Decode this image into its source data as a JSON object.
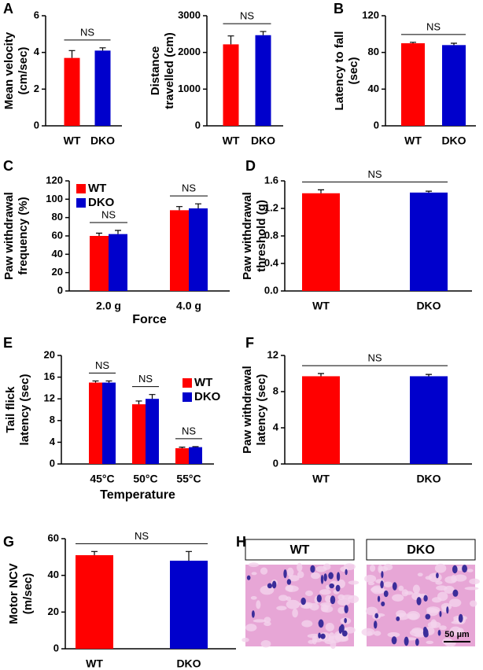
{
  "chart_data": [
    {
      "type": "bar",
      "panel": "A",
      "ylabel": [
        "Mean velocity",
        "(cm/sec)"
      ],
      "categories": [
        "WT",
        "DKO"
      ],
      "values": [
        3.7,
        4.1
      ],
      "errors": [
        0.4,
        0.15
      ],
      "colors": [
        "#ff0000",
        "#0000cc"
      ],
      "ylim": [
        0,
        6
      ],
      "yticks": [
        0,
        2,
        4,
        6
      ],
      "annotations": [
        "NS"
      ]
    },
    {
      "type": "bar",
      "ylabel": [
        "Distance",
        "travelled (cm)"
      ],
      "categories": [
        "WT",
        "DKO"
      ],
      "values": [
        2220,
        2470
      ],
      "errors": [
        230,
        100
      ],
      "colors": [
        "#ff0000",
        "#0000cc"
      ],
      "ylim": [
        0,
        3000
      ],
      "yticks": [
        0,
        1000,
        2000,
        3000
      ],
      "annotations": [
        "NS"
      ]
    },
    {
      "type": "bar",
      "panel": "B",
      "ylabel": [
        "Latency to fall",
        "(sec)"
      ],
      "categories": [
        "WT",
        "DKO"
      ],
      "values": [
        90,
        88
      ],
      "errors": [
        1,
        2
      ],
      "colors": [
        "#ff0000",
        "#0000cc"
      ],
      "ylim": [
        0,
        120
      ],
      "yticks": [
        0,
        40,
        80,
        120
      ],
      "annotations": [
        "NS"
      ]
    },
    {
      "type": "bar",
      "panel": "C",
      "ylabel": [
        "Paw withdrawal",
        "frequency (%)"
      ],
      "xlabel": "Force",
      "categories": [
        "2.0 g",
        "4.0 g"
      ],
      "series": [
        {
          "name": "WT",
          "color": "#ff0000",
          "values": [
            60,
            88
          ],
          "errors": [
            3,
            4
          ]
        },
        {
          "name": "DKO",
          "color": "#0000cc",
          "values": [
            62,
            90
          ],
          "errors": [
            4,
            5
          ]
        }
      ],
      "ylim": [
        0,
        120
      ],
      "yticks": [
        0,
        20,
        40,
        60,
        80,
        100,
        120
      ],
      "annotations": [
        "NS",
        "NS"
      ],
      "legend": "upper left"
    },
    {
      "type": "bar",
      "panel": "D",
      "ylabel": [
        "Paw withdrawal",
        "threshold (g)"
      ],
      "categories": [
        "WT",
        "DKO"
      ],
      "values": [
        1.42,
        1.43
      ],
      "errors": [
        0.05,
        0.02
      ],
      "colors": [
        "#ff0000",
        "#0000cc"
      ],
      "ylim": [
        0,
        1.6
      ],
      "yticks": [
        {
          "value": 0,
          "label": "0.0"
        },
        0.4,
        0.8,
        1.2,
        1.6
      ],
      "annotations": [
        "NS"
      ]
    },
    {
      "type": "bar",
      "panel": "E",
      "ylabel": [
        "Tail flick",
        "latency (sec)"
      ],
      "xlabel": "Temperature",
      "categories": [
        "45°C",
        "50°C",
        "55°C"
      ],
      "series": [
        {
          "name": "WT",
          "color": "#ff0000",
          "values": [
            15,
            11,
            2.9
          ],
          "errors": [
            0.3,
            0.6,
            0.2
          ]
        },
        {
          "name": "DKO",
          "color": "#0000cc",
          "values": [
            15,
            12,
            3.1
          ],
          "errors": [
            0.3,
            0.8,
            0.1
          ]
        }
      ],
      "ylim": [
        0,
        20
      ],
      "yticks": [
        0,
        4,
        8,
        12,
        16,
        20
      ],
      "annotations": [
        "NS",
        "NS",
        "NS"
      ],
      "legend": "upper right"
    },
    {
      "type": "bar",
      "panel": "F",
      "ylabel": [
        "Paw withdrawal",
        "latency (sec)"
      ],
      "categories": [
        "WT",
        "DKO"
      ],
      "values": [
        9.7,
        9.7
      ],
      "errors": [
        0.3,
        0.2
      ],
      "colors": [
        "#ff0000",
        "#0000cc"
      ],
      "ylim": [
        0,
        12
      ],
      "yticks": [
        0,
        4,
        8,
        12
      ],
      "annotations": [
        "NS"
      ]
    },
    {
      "type": "bar",
      "panel": "G",
      "ylabel": [
        "Motor NCV",
        "(m/sec)"
      ],
      "categories": [
        "WT",
        "DKO"
      ],
      "values": [
        51,
        48
      ],
      "errors": [
        2,
        5
      ],
      "colors": [
        "#ff0000",
        "#0000cc"
      ],
      "ylim": [
        0,
        60
      ],
      "yticks": [
        0,
        20,
        40,
        60
      ],
      "annotations": [
        "NS"
      ]
    },
    {
      "type": "image",
      "panel": "H",
      "categories": [
        "WT",
        "DKO"
      ],
      "scale_bar": "50 µm"
    }
  ]
}
